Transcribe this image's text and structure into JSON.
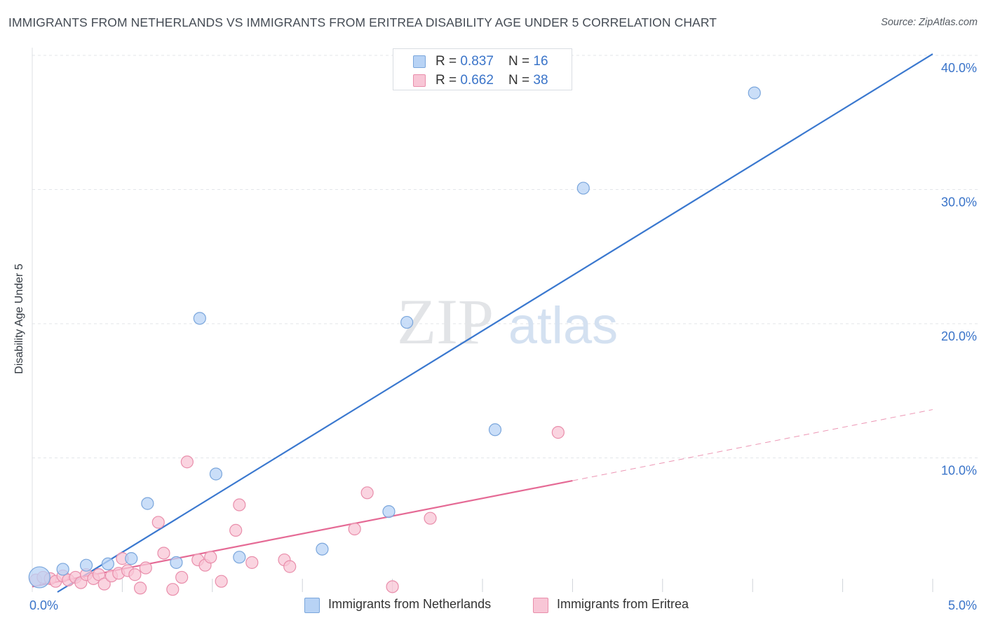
{
  "header": {
    "title": "IMMIGRANTS FROM NETHERLANDS VS IMMIGRANTS FROM ERITREA DISABILITY AGE UNDER 5 CORRELATION CHART",
    "source": "Source: ZipAtlas.com"
  },
  "watermark": {
    "zip": "ZIP",
    "atlas": "atlas"
  },
  "legend": {
    "rows": [
      {
        "r_label": "R = ",
        "r_value": "0.837",
        "n_label": "N = ",
        "n_value": "16"
      },
      {
        "r_label": "R = ",
        "r_value": "0.662",
        "n_label": "N = ",
        "n_value": "38"
      }
    ]
  },
  "colors": {
    "netherlands_fill": "#b8d3f5",
    "netherlands_stroke": "#7aa6dc",
    "netherlands_line": "#3a78cf",
    "eritrea_fill": "#f8c6d6",
    "eritrea_stroke": "#e98eab",
    "eritrea_line": "#e56a95",
    "tick_label": "#3a74c9",
    "grid": "#e3e6ea"
  },
  "chart_data": {
    "type": "scatter",
    "ylabel": "Disability Age Under 5",
    "xlabel": "",
    "xlim": [
      0,
      5
    ],
    "ylim": [
      0,
      40
    ],
    "x_tick_labels": [
      {
        "value": 0,
        "label": "0.0%"
      },
      {
        "value": 5,
        "label": "5.0%"
      }
    ],
    "y_tick_labels": [
      {
        "value": 10,
        "label": "10.0%"
      },
      {
        "value": 20,
        "label": "20.0%"
      },
      {
        "value": 30,
        "label": "30.0%"
      },
      {
        "value": 40,
        "label": "40.0%"
      }
    ],
    "grid": true,
    "legend_position": "top-center",
    "series": [
      {
        "name": "Immigrants from Netherlands",
        "r": 0.837,
        "n": 16,
        "points": [
          {
            "x": 0.04,
            "y": 1.1,
            "big": true
          },
          {
            "x": 0.17,
            "y": 1.7
          },
          {
            "x": 0.3,
            "y": 2.0
          },
          {
            "x": 0.42,
            "y": 2.1
          },
          {
            "x": 0.55,
            "y": 2.5
          },
          {
            "x": 0.64,
            "y": 6.6
          },
          {
            "x": 0.8,
            "y": 2.2
          },
          {
            "x": 0.93,
            "y": 20.4
          },
          {
            "x": 1.02,
            "y": 8.8
          },
          {
            "x": 1.15,
            "y": 2.6
          },
          {
            "x": 1.61,
            "y": 3.2
          },
          {
            "x": 1.98,
            "y": 6.0
          },
          {
            "x": 2.08,
            "y": 20.1
          },
          {
            "x": 2.57,
            "y": 12.1
          },
          {
            "x": 3.06,
            "y": 30.1
          },
          {
            "x": 4.01,
            "y": 37.2
          }
        ],
        "trend": {
          "x0": 0.14,
          "y0": 0.0,
          "x1": 5.0,
          "y1": 40.1
        }
      },
      {
        "name": "Immigrants from Eritrea",
        "r": 0.662,
        "n": 38,
        "points": [
          {
            "x": 0.02,
            "y": 0.9
          },
          {
            "x": 0.06,
            "y": 1.1
          },
          {
            "x": 0.1,
            "y": 1.0
          },
          {
            "x": 0.13,
            "y": 0.8
          },
          {
            "x": 0.17,
            "y": 1.2
          },
          {
            "x": 0.2,
            "y": 0.9
          },
          {
            "x": 0.24,
            "y": 1.1
          },
          {
            "x": 0.27,
            "y": 0.7
          },
          {
            "x": 0.3,
            "y": 1.3
          },
          {
            "x": 0.34,
            "y": 1.0
          },
          {
            "x": 0.37,
            "y": 1.3
          },
          {
            "x": 0.4,
            "y": 0.6
          },
          {
            "x": 0.44,
            "y": 1.2
          },
          {
            "x": 0.48,
            "y": 1.4
          },
          {
            "x": 0.5,
            "y": 2.5
          },
          {
            "x": 0.53,
            "y": 1.6
          },
          {
            "x": 0.57,
            "y": 1.3
          },
          {
            "x": 0.6,
            "y": 0.3
          },
          {
            "x": 0.63,
            "y": 1.8
          },
          {
            "x": 0.7,
            "y": 5.2
          },
          {
            "x": 0.73,
            "y": 2.9
          },
          {
            "x": 0.78,
            "y": 0.2
          },
          {
            "x": 0.83,
            "y": 1.1
          },
          {
            "x": 0.86,
            "y": 9.7
          },
          {
            "x": 0.92,
            "y": 2.4
          },
          {
            "x": 0.96,
            "y": 2.0
          },
          {
            "x": 0.99,
            "y": 2.6
          },
          {
            "x": 1.05,
            "y": 0.8
          },
          {
            "x": 1.13,
            "y": 4.6
          },
          {
            "x": 1.15,
            "y": 6.5
          },
          {
            "x": 1.22,
            "y": 2.2
          },
          {
            "x": 1.4,
            "y": 2.4
          },
          {
            "x": 1.43,
            "y": 1.9
          },
          {
            "x": 1.79,
            "y": 4.7
          },
          {
            "x": 1.86,
            "y": 7.4
          },
          {
            "x": 2.0,
            "y": 0.4
          },
          {
            "x": 2.21,
            "y": 5.5
          },
          {
            "x": 2.92,
            "y": 11.9
          }
        ],
        "trend": {
          "x0": 0.0,
          "y0": 0.4,
          "x1": 3.0,
          "y1": 8.3
        },
        "trend_extension": {
          "x0": 3.0,
          "y0": 8.3,
          "x1": 5.0,
          "y1": 13.6
        }
      }
    ]
  }
}
